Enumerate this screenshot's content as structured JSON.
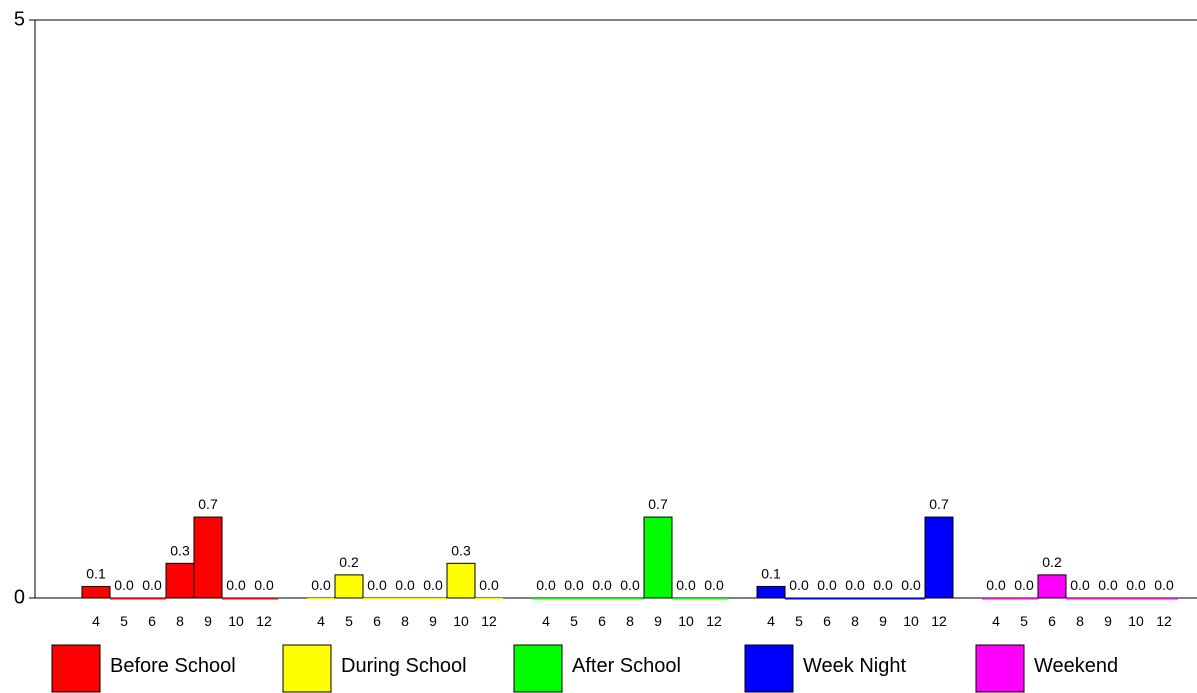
{
  "chart_data": {
    "type": "bar",
    "categories": [
      "4",
      "5",
      "6",
      "8",
      "9",
      "10",
      "12"
    ],
    "series": [
      {
        "name": "Before School",
        "color": "#ff0000",
        "values": [
          0.1,
          0.0,
          0.0,
          0.3,
          0.7,
          0.0,
          0.0
        ],
        "value_labels": [
          "0.1",
          "0.0",
          "0.0",
          "0.3",
          "0.7",
          "0.0",
          "0.0"
        ]
      },
      {
        "name": "During School",
        "color": "#ffff00",
        "values": [
          0.0,
          0.2,
          0.0,
          0.0,
          0.0,
          0.3,
          0.0
        ],
        "value_labels": [
          "0.0",
          "0.2",
          "0.0",
          "0.0",
          "0.0",
          "0.3",
          "0.0"
        ]
      },
      {
        "name": "After School",
        "color": "#00ff00",
        "values": [
          0.0,
          0.0,
          0.0,
          0.0,
          0.7,
          0.0,
          0.0
        ],
        "value_labels": [
          "0.0",
          "0.0",
          "0.0",
          "0.0",
          "0.7",
          "0.0",
          "0.0"
        ]
      },
      {
        "name": "Week Night",
        "color": "#0000ff",
        "values": [
          0.1,
          0.0,
          0.0,
          0.0,
          0.0,
          0.0,
          0.7
        ],
        "value_labels": [
          "0.1",
          "0.0",
          "0.0",
          "0.0",
          "0.0",
          "0.0",
          "0.7"
        ]
      },
      {
        "name": "Weekend",
        "color": "#ff00ff",
        "values": [
          0.0,
          0.0,
          0.2,
          0.0,
          0.0,
          0.0,
          0.0
        ],
        "value_labels": [
          "0.0",
          "0.0",
          "0.2",
          "0.0",
          "0.0",
          "0.0",
          "0.0"
        ]
      }
    ],
    "ylim": [
      0,
      5
    ],
    "yticks": [
      0,
      5
    ]
  }
}
